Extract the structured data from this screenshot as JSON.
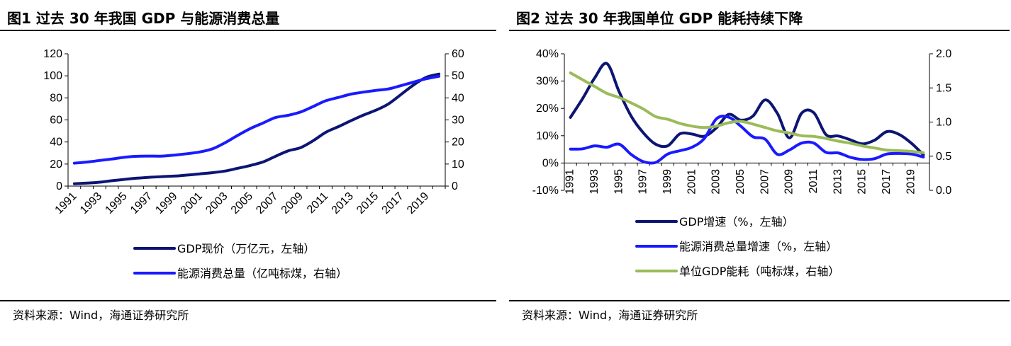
{
  "charts": [
    {
      "title": "图1  过去 30 年我国 GDP 与能源消费总量",
      "source": "资料来源：Wind，海通证券研究所"
    },
    {
      "title": "图2  过去 30 年我国单位 GDP 能耗持续下降",
      "source": "资料来源：Wind，海通证券研究所"
    }
  ],
  "chart_data": [
    {
      "type": "line",
      "title": "图1  过去 30 年我国 GDP 与能源消费总量",
      "x": [
        1991,
        1992,
        1993,
        1994,
        1995,
        1996,
        1997,
        1998,
        1999,
        2000,
        2001,
        2002,
        2003,
        2004,
        2005,
        2006,
        2007,
        2008,
        2009,
        2010,
        2011,
        2012,
        2013,
        2014,
        2015,
        2016,
        2017,
        2018,
        2019,
        2020
      ],
      "xticks": [
        "1991",
        "1993",
        "1995",
        "1997",
        "1999",
        "2001",
        "2003",
        "2005",
        "2007",
        "2009",
        "2011",
        "2013",
        "2015",
        "2017",
        "2019"
      ],
      "y_left": {
        "range": [
          0,
          120
        ],
        "ticks": [
          "0",
          "20",
          "40",
          "60",
          "80",
          "100",
          "120"
        ]
      },
      "y_right": {
        "range": [
          0,
          60
        ],
        "ticks": [
          "0",
          "10",
          "20",
          "30",
          "40",
          "50",
          "60"
        ]
      },
      "series": [
        {
          "name": "GDP现价（万亿元，左轴）",
          "axis": "left",
          "color": "#0d1573",
          "values": [
            2.2,
            2.7,
            3.5,
            4.9,
            6.1,
            7.2,
            8.0,
            8.6,
            9.1,
            10.0,
            11.1,
            12.2,
            13.7,
            16.2,
            18.7,
            21.9,
            27.0,
            31.9,
            34.9,
            41.2,
            48.8,
            53.9,
            59.3,
            64.4,
            68.9,
            74.6,
            83.2,
            91.9,
            98.7,
            101.6
          ]
        },
        {
          "name": "能源消费总量（亿吨标煤，右轴）",
          "axis": "right",
          "color": "#1a1aff",
          "values": [
            10.4,
            10.9,
            11.6,
            12.3,
            13.1,
            13.5,
            13.6,
            13.6,
            14.1,
            14.7,
            15.5,
            16.9,
            19.7,
            23.0,
            26.1,
            28.6,
            31.1,
            32.1,
            33.6,
            36.1,
            38.7,
            40.2,
            41.7,
            42.6,
            43.4,
            44.1,
            45.6,
            47.2,
            48.7,
            49.8
          ]
        }
      ]
    },
    {
      "type": "line",
      "title": "图2  过去 30 年我国单位 GDP 能耗持续下降",
      "x": [
        1991,
        1992,
        1993,
        1994,
        1995,
        1996,
        1997,
        1998,
        1999,
        2000,
        2001,
        2002,
        2003,
        2004,
        2005,
        2006,
        2007,
        2008,
        2009,
        2010,
        2011,
        2012,
        2013,
        2014,
        2015,
        2016,
        2017,
        2018,
        2019,
        2020
      ],
      "xticks": [
        "1991",
        "1993",
        "1995",
        "1997",
        "1999",
        "2001",
        "2003",
        "2005",
        "2007",
        "2009",
        "2011",
        "2013",
        "2015",
        "2017",
        "2019"
      ],
      "y_left": {
        "range": [
          -10,
          40
        ],
        "ticks": [
          "-10%",
          "0%",
          "10%",
          "20%",
          "30%",
          "40%"
        ]
      },
      "y_right": {
        "range": [
          0,
          2
        ],
        "ticks": [
          "0.0",
          "0.5",
          "1.0",
          "1.5",
          "2.0"
        ]
      },
      "series": [
        {
          "name": "GDP增速（%，左轴）",
          "axis": "left",
          "color": "#0d1573",
          "values": [
            16.7,
            23.6,
            31.2,
            36.4,
            26.1,
            17.1,
            11.0,
            6.9,
            6.3,
            10.7,
            10.6,
            9.8,
            12.9,
            17.8,
            15.7,
            17.2,
            23.1,
            18.2,
            9.2,
            18.3,
            18.4,
            10.4,
            9.9,
            8.5,
            7.0,
            8.4,
            11.5,
            10.5,
            7.3,
            3.0
          ]
        },
        {
          "name": "能源消费总量增速（%，左轴）",
          "axis": "left",
          "color": "#1a1aff",
          "values": [
            5.1,
            5.2,
            6.3,
            5.8,
            6.9,
            3.1,
            0.5,
            0.2,
            3.3,
            4.5,
            5.8,
            9.0,
            16.2,
            16.8,
            13.5,
            9.6,
            8.7,
            3.2,
            4.8,
            7.3,
            7.3,
            3.9,
            3.7,
            2.1,
            1.3,
            1.6,
            3.3,
            3.5,
            3.3,
            2.2
          ]
        },
        {
          "name": "单位GDP能耗（吨标煤，右轴）",
          "axis": "right",
          "color": "#9bbb59",
          "values": [
            1.72,
            1.62,
            1.52,
            1.42,
            1.36,
            1.28,
            1.19,
            1.08,
            1.04,
            0.98,
            0.94,
            0.92,
            0.94,
            0.99,
            1.01,
            0.97,
            0.92,
            0.87,
            0.84,
            0.8,
            0.79,
            0.76,
            0.72,
            0.69,
            0.65,
            0.62,
            0.59,
            0.58,
            0.57,
            0.55
          ]
        }
      ]
    }
  ]
}
